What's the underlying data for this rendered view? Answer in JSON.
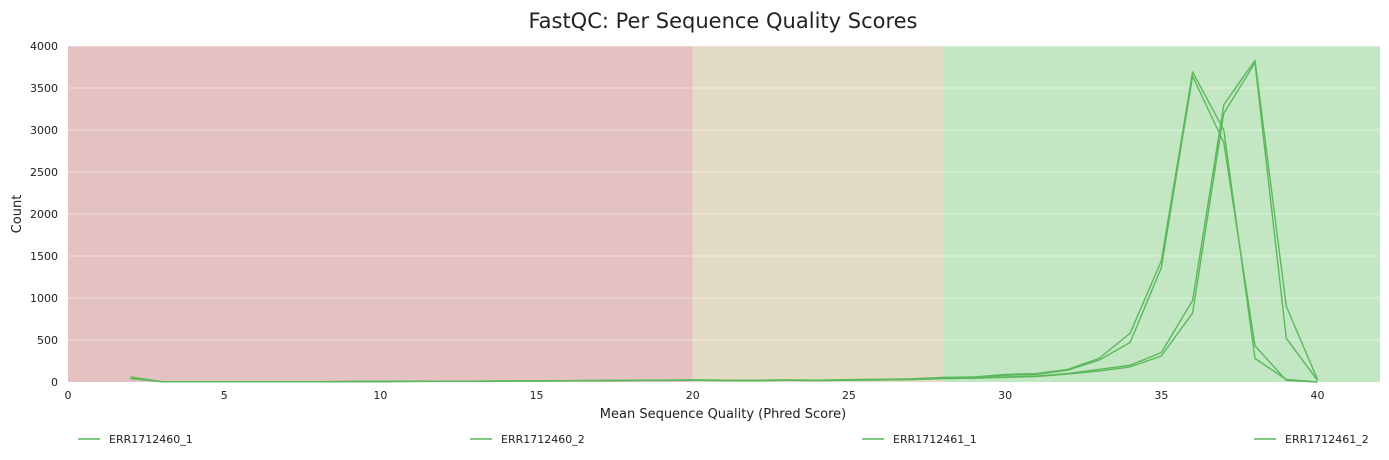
{
  "chart_data": {
    "type": "line",
    "title": "FastQC: Per Sequence Quality Scores",
    "xlabel": "Mean Sequence Quality (Phred Score)",
    "ylabel": "Count",
    "xlim": [
      0,
      42
    ],
    "ylim": [
      0,
      4000
    ],
    "x_ticks": [
      0,
      5,
      10,
      15,
      20,
      25,
      30,
      35,
      40
    ],
    "y_ticks": [
      0,
      500,
      1000,
      1500,
      2000,
      2500,
      3000,
      3500,
      4000
    ],
    "grid": true,
    "legend_position": "bottom",
    "bands": [
      {
        "from": 0,
        "to": 20,
        "color": "#e4c2c2"
      },
      {
        "from": 20,
        "to": 28,
        "color": "#e4dbc4"
      },
      {
        "from": 28,
        "to": 42,
        "color": "#c3e7c3"
      }
    ],
    "line_color": "#5cb85c",
    "series": [
      {
        "name": "ERR1712460_1",
        "x": [
          2,
          3,
          4,
          5,
          6,
          7,
          8,
          9,
          10,
          11,
          12,
          13,
          14,
          15,
          16,
          17,
          18,
          19,
          20,
          21,
          22,
          23,
          24,
          25,
          26,
          27,
          28,
          29,
          30,
          31,
          32,
          33,
          34,
          35,
          36,
          37,
          38,
          39,
          40
        ],
        "y": [
          60,
          5,
          3,
          3,
          3,
          4,
          4,
          5,
          6,
          8,
          9,
          10,
          12,
          14,
          16,
          18,
          20,
          22,
          24,
          22,
          20,
          25,
          22,
          28,
          32,
          38,
          55,
          60,
          90,
          100,
          150,
          280,
          580,
          1440,
          3690,
          3000,
          280,
          30,
          0
        ]
      },
      {
        "name": "ERR1712460_2",
        "x": [
          2,
          3,
          4,
          5,
          6,
          7,
          8,
          9,
          10,
          11,
          12,
          13,
          14,
          15,
          16,
          17,
          18,
          19,
          20,
          21,
          22,
          23,
          24,
          25,
          26,
          27,
          28,
          29,
          30,
          31,
          32,
          33,
          34,
          35,
          36,
          37,
          38,
          39,
          40
        ],
        "y": [
          50,
          4,
          3,
          3,
          3,
          4,
          4,
          5,
          6,
          8,
          9,
          10,
          12,
          14,
          16,
          18,
          20,
          22,
          24,
          22,
          20,
          24,
          22,
          26,
          30,
          35,
          50,
          55,
          80,
          90,
          140,
          260,
          470,
          1360,
          3640,
          2850,
          430,
          20,
          0
        ]
      },
      {
        "name": "ERR1712461_1",
        "x": [
          2,
          3,
          4,
          5,
          6,
          7,
          8,
          9,
          10,
          11,
          12,
          13,
          14,
          15,
          16,
          17,
          18,
          19,
          20,
          21,
          22,
          23,
          24,
          25,
          26,
          27,
          28,
          29,
          30,
          31,
          32,
          33,
          34,
          35,
          36,
          37,
          38,
          39,
          40
        ],
        "y": [
          45,
          4,
          3,
          3,
          3,
          4,
          4,
          5,
          6,
          7,
          8,
          9,
          10,
          12,
          14,
          16,
          18,
          19,
          20,
          18,
          16,
          20,
          18,
          22,
          25,
          30,
          40,
          45,
          60,
          70,
          100,
          150,
          200,
          350,
          970,
          3300,
          3830,
          900,
          30
        ]
      },
      {
        "name": "ERR1712461_2",
        "x": [
          2,
          3,
          4,
          5,
          6,
          7,
          8,
          9,
          10,
          11,
          12,
          13,
          14,
          15,
          16,
          17,
          18,
          19,
          20,
          21,
          22,
          23,
          24,
          25,
          26,
          27,
          28,
          29,
          30,
          31,
          32,
          33,
          34,
          35,
          36,
          37,
          38,
          39,
          40
        ],
        "y": [
          40,
          4,
          3,
          3,
          3,
          4,
          4,
          5,
          6,
          7,
          8,
          9,
          10,
          12,
          14,
          16,
          18,
          19,
          20,
          18,
          16,
          20,
          18,
          22,
          25,
          30,
          40,
          45,
          55,
          65,
          95,
          130,
          180,
          310,
          820,
          3200,
          3800,
          520,
          20
        ]
      }
    ]
  }
}
